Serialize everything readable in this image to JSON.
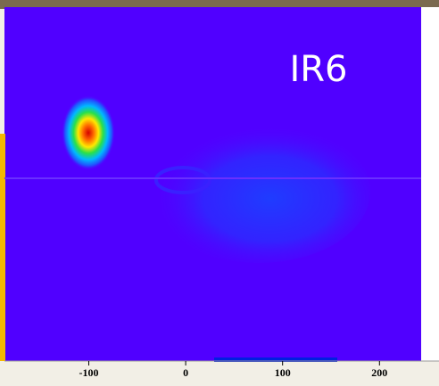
{
  "chart_data": {
    "type": "heatmap",
    "annotation": "IR6",
    "xlim": [
      -187,
      243
    ],
    "xticks": [
      -100,
      0,
      100,
      200
    ]
  }
}
